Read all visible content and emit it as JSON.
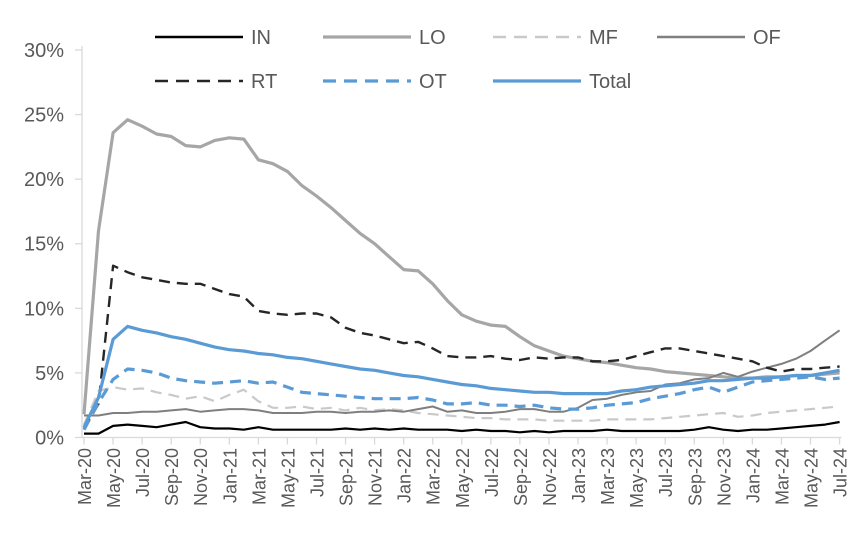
{
  "chart_data": {
    "type": "line",
    "title": "",
    "xlabel": "",
    "ylabel": "",
    "ylim": [
      0,
      30
    ],
    "y_tick_step": 5,
    "y_tick_labels": [
      "0%",
      "5%",
      "10%",
      "15%",
      "20%",
      "25%",
      "30%"
    ],
    "grid": false,
    "legend_position": "top",
    "axis_color": "#d9d9d9",
    "tick_label_color": "#595959",
    "legend_label_color": "#595959",
    "x": [
      "Mar-20",
      "Apr-20",
      "May-20",
      "Jun-20",
      "Jul-20",
      "Aug-20",
      "Sep-20",
      "Oct-20",
      "Nov-20",
      "Dec-20",
      "Jan-21",
      "Feb-21",
      "Mar-21",
      "Apr-21",
      "May-21",
      "Jun-21",
      "Jul-21",
      "Aug-21",
      "Sep-21",
      "Oct-21",
      "Nov-21",
      "Dec-21",
      "Jan-22",
      "Feb-22",
      "Mar-22",
      "Apr-22",
      "May-22",
      "Jun-22",
      "Jul-22",
      "Aug-22",
      "Sep-22",
      "Oct-22",
      "Nov-22",
      "Dec-22",
      "Jan-23",
      "Feb-23",
      "Mar-23",
      "Apr-23",
      "May-23",
      "Jun-23",
      "Jul-23",
      "Aug-23",
      "Sep-23",
      "Oct-23",
      "Nov-23",
      "Dec-23",
      "Jan-24",
      "Feb-24",
      "Mar-24",
      "Apr-24",
      "May-24",
      "Jun-24",
      "Jul-24"
    ],
    "x_tick_labels": [
      "Mar-20",
      "May-20",
      "Jul-20",
      "Sep-20",
      "Nov-20",
      "Jan-21",
      "Mar-21",
      "May-21",
      "Jul-21",
      "Sep-21",
      "Nov-21",
      "Jan-22",
      "Mar-22",
      "May-22",
      "Jul-22",
      "Sep-22",
      "Nov-22",
      "Jan-23",
      "Mar-23",
      "May-23",
      "Jul-23",
      "Sep-23",
      "Nov-23",
      "Jan-24",
      "Mar-24",
      "May-24",
      "Jul-24"
    ],
    "series": [
      {
        "name": "IN",
        "color": "#000000",
        "style": "solid",
        "width": 2.2,
        "values": [
          0.3,
          0.3,
          0.9,
          1.0,
          0.9,
          0.8,
          1.0,
          1.2,
          0.8,
          0.7,
          0.7,
          0.6,
          0.8,
          0.6,
          0.6,
          0.6,
          0.6,
          0.6,
          0.7,
          0.6,
          0.7,
          0.6,
          0.7,
          0.6,
          0.6,
          0.6,
          0.5,
          0.6,
          0.5,
          0.5,
          0.4,
          0.5,
          0.4,
          0.5,
          0.5,
          0.5,
          0.6,
          0.5,
          0.5,
          0.5,
          0.5,
          0.5,
          0.6,
          0.8,
          0.6,
          0.5,
          0.6,
          0.6,
          0.7,
          0.8,
          0.9,
          1.0,
          1.2
        ]
      },
      {
        "name": "LO",
        "color": "#a6a6a6",
        "style": "solid",
        "width": 3.2,
        "values": [
          1.8,
          16.0,
          23.6,
          24.6,
          24.1,
          23.5,
          23.3,
          22.6,
          22.5,
          23.0,
          23.2,
          23.1,
          21.5,
          21.2,
          20.6,
          19.5,
          18.7,
          17.8,
          16.8,
          15.8,
          15.0,
          14.0,
          13.0,
          12.9,
          11.9,
          10.6,
          9.5,
          9.0,
          8.7,
          8.6,
          7.8,
          7.1,
          6.7,
          6.3,
          6.1,
          5.9,
          5.8,
          5.6,
          5.4,
          5.3,
          5.1,
          5.0,
          4.9,
          4.8,
          4.7,
          4.6,
          4.6,
          4.7,
          4.7,
          4.8,
          4.8,
          4.9,
          5.0
        ]
      },
      {
        "name": "MF",
        "color": "#c9c9c9",
        "style": "dashed",
        "width": 2.2,
        "values": [
          1.0,
          3.6,
          3.9,
          3.7,
          3.8,
          3.5,
          3.3,
          3.0,
          3.2,
          2.8,
          3.3,
          3.7,
          2.8,
          2.3,
          2.3,
          2.4,
          2.2,
          2.3,
          2.1,
          2.3,
          2.1,
          2.2,
          2.1,
          1.9,
          1.8,
          1.7,
          1.6,
          1.5,
          1.5,
          1.4,
          1.4,
          1.4,
          1.3,
          1.3,
          1.3,
          1.3,
          1.4,
          1.4,
          1.4,
          1.4,
          1.5,
          1.6,
          1.7,
          1.8,
          1.9,
          1.6,
          1.7,
          1.9,
          2.0,
          2.1,
          2.2,
          2.3,
          2.4
        ]
      },
      {
        "name": "OF",
        "color": "#7f7f7f",
        "style": "solid",
        "width": 2.0,
        "values": [
          1.7,
          1.7,
          1.9,
          1.9,
          2.0,
          2.0,
          2.1,
          2.2,
          2.0,
          2.1,
          2.2,
          2.2,
          2.1,
          1.9,
          1.9,
          1.9,
          2.0,
          2.0,
          1.9,
          2.0,
          2.0,
          2.1,
          2.0,
          2.2,
          2.4,
          2.0,
          2.1,
          1.9,
          1.9,
          2.0,
          2.2,
          2.2,
          2.0,
          2.0,
          2.3,
          2.9,
          3.0,
          3.3,
          3.5,
          3.6,
          4.1,
          4.2,
          4.5,
          4.6,
          5.0,
          4.7,
          5.1,
          5.4,
          5.7,
          6.1,
          6.7,
          7.5,
          8.3
        ]
      },
      {
        "name": "RT",
        "color": "#262626",
        "style": "dashed",
        "width": 2.4,
        "values": [
          0.7,
          2.6,
          13.3,
          12.8,
          12.4,
          12.2,
          12.0,
          11.9,
          11.9,
          11.5,
          11.1,
          10.9,
          9.8,
          9.6,
          9.5,
          9.6,
          9.6,
          9.3,
          8.5,
          8.1,
          7.9,
          7.6,
          7.3,
          7.4,
          6.9,
          6.3,
          6.2,
          6.2,
          6.3,
          6.1,
          6.0,
          6.2,
          6.1,
          6.2,
          6.2,
          5.9,
          5.9,
          6.0,
          6.3,
          6.6,
          6.9,
          6.9,
          6.7,
          6.5,
          6.3,
          6.1,
          5.9,
          5.4,
          5.1,
          5.3,
          5.3,
          5.4,
          5.5
        ]
      },
      {
        "name": "OT",
        "color": "#5b9bd5",
        "style": "dashed",
        "width": 3.2,
        "values": [
          0.6,
          2.7,
          4.5,
          5.3,
          5.2,
          5.0,
          4.6,
          4.4,
          4.3,
          4.2,
          4.3,
          4.4,
          4.2,
          4.3,
          3.9,
          3.5,
          3.4,
          3.3,
          3.2,
          3.1,
          3.0,
          3.0,
          3.0,
          3.1,
          2.9,
          2.6,
          2.6,
          2.7,
          2.5,
          2.5,
          2.4,
          2.5,
          2.3,
          2.2,
          2.2,
          2.3,
          2.5,
          2.6,
          2.7,
          3.0,
          3.2,
          3.4,
          3.7,
          3.9,
          3.5,
          3.9,
          4.3,
          4.4,
          4.5,
          4.6,
          4.7,
          4.5,
          4.6
        ]
      },
      {
        "name": "Total",
        "color": "#5b9bd5",
        "style": "solid",
        "width": 3.2,
        "values": [
          0.8,
          3.1,
          7.6,
          8.6,
          8.3,
          8.1,
          7.8,
          7.6,
          7.3,
          7.0,
          6.8,
          6.7,
          6.5,
          6.4,
          6.2,
          6.1,
          5.9,
          5.7,
          5.5,
          5.3,
          5.2,
          5.0,
          4.8,
          4.7,
          4.5,
          4.3,
          4.1,
          4.0,
          3.8,
          3.7,
          3.6,
          3.5,
          3.5,
          3.4,
          3.4,
          3.4,
          3.4,
          3.6,
          3.7,
          3.9,
          4.0,
          4.1,
          4.2,
          4.4,
          4.4,
          4.5,
          4.6,
          4.6,
          4.7,
          4.8,
          4.8,
          5.0,
          5.2
        ]
      }
    ]
  }
}
